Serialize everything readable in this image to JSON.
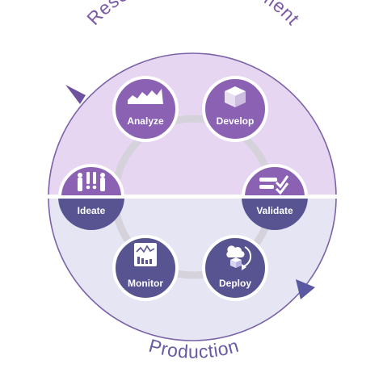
{
  "top_arc_label": "Research & Development",
  "bottom_arc_label": "Production",
  "colors": {
    "top_fill": "#e7d6f1",
    "bottom_fill": "#e5e5f3",
    "rim": "#7b63a8",
    "divider": "#ffffff",
    "top_node": "#8a61b3",
    "bottom_node": "#575491",
    "ring": "#d5d2dc",
    "label_text": "#7b5aa6"
  },
  "nodes": [
    {
      "key": "analyze",
      "label": "Analyze",
      "icon": "line-chart-icon"
    },
    {
      "key": "develop",
      "label": "Develop",
      "icon": "cube-icon"
    },
    {
      "key": "validate",
      "label": "Validate",
      "icon": "checklist-icon"
    },
    {
      "key": "deploy",
      "label": "Deploy",
      "icon": "cloud-cycle-icon"
    },
    {
      "key": "monitor",
      "label": "Monitor",
      "icon": "dashboard-icon"
    },
    {
      "key": "ideate",
      "label": "Ideate",
      "icon": "ideas-icon"
    }
  ]
}
